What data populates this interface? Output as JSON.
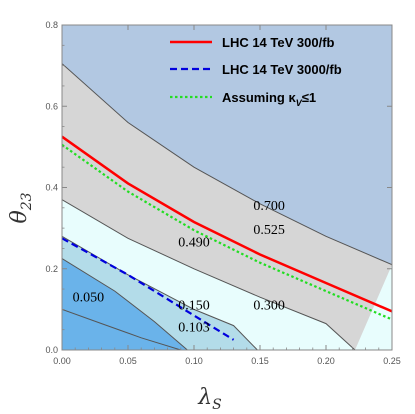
{
  "chart_data": {
    "type": "contour",
    "xlabel": "λ",
    "xlabel_sub": "S",
    "ylabel": "θ",
    "ylabel_sub": "23",
    "xlim": [
      0,
      0.25
    ],
    "ylim": [
      0,
      0.8
    ],
    "xticks": [
      "0.00",
      "0.05",
      "0.10",
      "0.15",
      "0.20",
      "0.25"
    ],
    "yticks": [
      "0.0",
      "0.2",
      "0.4",
      "0.6",
      "0.8"
    ],
    "colors": {
      "region_top": "#b2c8e2",
      "region_mid": "#d6d6d6",
      "region_low": "#e8fdfd",
      "region_band": "#b3dce9",
      "region_corner": "#6ab3ea",
      "contour_line": "#555555",
      "lhc300": "#ff0000",
      "lhc3000": "#0000dd",
      "kappa": "#22dd22"
    },
    "contours": [
      {
        "level": 0.7,
        "points": [
          [
            0,
            0.705
          ],
          [
            0.05,
            0.56
          ],
          [
            0.1,
            0.45
          ],
          [
            0.15,
            0.36
          ],
          [
            0.2,
            0.28
          ],
          [
            0.25,
            0.21
          ]
        ]
      },
      {
        "level": 0.49,
        "points": [
          [
            0,
            0.37
          ],
          [
            0.05,
            0.275
          ],
          [
            0.1,
            0.2
          ],
          [
            0.15,
            0.13
          ],
          [
            0.2,
            0.065
          ],
          [
            0.222,
            0
          ]
        ]
      },
      {
        "level": 0.3,
        "points": [
          [
            0,
            0.28
          ],
          [
            0.05,
            0.185
          ],
          [
            0.1,
            0.1
          ],
          [
            0.13,
            0.06
          ],
          [
            0.148,
            0
          ]
        ]
      },
      {
        "level": 0.1,
        "points": [
          [
            0,
            0.225
          ],
          [
            0.04,
            0.145
          ],
          [
            0.07,
            0.07
          ],
          [
            0.095,
            0
          ]
        ]
      },
      {
        "level": 0.05,
        "points": [
          [
            0,
            0.1
          ],
          [
            0.03,
            0.065
          ],
          [
            0.06,
            0.03
          ],
          [
            0.09,
            0
          ]
        ]
      }
    ],
    "series": [
      {
        "name": "LHC 14 TeV 300/fb",
        "style": "solid",
        "points": [
          [
            0,
            0.525
          ],
          [
            0.05,
            0.41
          ],
          [
            0.1,
            0.315
          ],
          [
            0.15,
            0.235
          ],
          [
            0.2,
            0.165
          ],
          [
            0.25,
            0.095
          ]
        ]
      },
      {
        "name": "LHC 14 TeV 3000/fb",
        "style": "dashed",
        "points": [
          [
            0,
            0.275
          ],
          [
            0.05,
            0.185
          ],
          [
            0.1,
            0.085
          ],
          [
            0.13,
            0.025
          ]
        ]
      },
      {
        "name": "Assuming κ≤1",
        "legend_prefix": "Assuming κ",
        "legend_sub": "V",
        "legend_suffix": "≤1",
        "style": "dotted",
        "points": [
          [
            0,
            0.505
          ],
          [
            0.05,
            0.39
          ],
          [
            0.1,
            0.295
          ],
          [
            0.15,
            0.215
          ],
          [
            0.2,
            0.145
          ],
          [
            0.25,
            0.075
          ]
        ]
      }
    ],
    "annotations": [
      {
        "text": "0.700",
        "x": 0.145,
        "y": 0.345
      },
      {
        "text": "0.525",
        "x": 0.145,
        "y": 0.285
      },
      {
        "text": "0.490",
        "x": 0.088,
        "y": 0.255
      },
      {
        "text": "0.050",
        "x": 0.008,
        "y": 0.12
      },
      {
        "text": "0.150",
        "x": 0.088,
        "y": 0.1
      },
      {
        "text": "0.300",
        "x": 0.145,
        "y": 0.1
      },
      {
        "text": "0.103",
        "x": 0.088,
        "y": 0.045
      }
    ],
    "legend": {
      "placement": "top-right",
      "items": [
        "LHC 14 TeV 300/fb",
        "LHC 14 TeV 3000/fb",
        "Assuming κ≤1"
      ]
    },
    "grid": false
  }
}
